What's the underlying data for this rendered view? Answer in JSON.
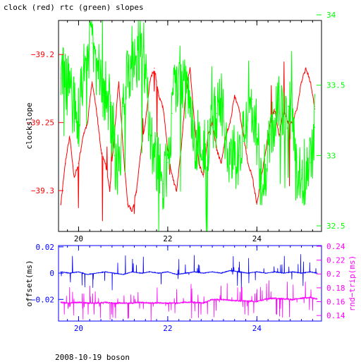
{
  "page": {
    "title": "clock (red) rtc (green) slopes",
    "footer": "2008-10-19 boson"
  },
  "colors": {
    "red": "#ff0000",
    "green": "#00ff00",
    "blue": "#0000ff",
    "magenta": "#ff00ff",
    "black": "#000000"
  },
  "chart_data": [
    {
      "type": "line",
      "title": "clock (red) rtc (green) slopes",
      "xlabel": "",
      "ylabel": "clockslope",
      "xlim": [
        19.55,
        25.45
      ],
      "ylim": [
        -39.33,
        -39.175
      ],
      "x_ticks": [
        20,
        22,
        24
      ],
      "x_tick_labels": [
        "20",
        "22",
        "24"
      ],
      "y_ticks": [
        -39.2,
        -39.25,
        -39.3
      ],
      "y_tick_labels": [
        "−39.2",
        "−39.25",
        "−39.3"
      ],
      "y2lim": [
        32.46,
        33.96
      ],
      "y2_ticks": [
        32.5,
        33,
        33.5,
        34
      ],
      "y2_tick_labels": [
        "32.5",
        "33",
        "33.5",
        "34"
      ],
      "series": [
        {
          "color": "red",
          "axis": "left",
          "x": [
            19.6,
            19.7,
            19.8,
            19.9,
            20.0,
            20.1,
            20.2,
            20.3,
            20.4,
            20.5,
            20.6,
            20.7,
            20.8,
            20.9,
            21.0,
            21.1,
            21.2,
            21.3,
            21.4,
            21.5,
            21.6,
            21.7,
            21.8,
            21.9,
            22.0,
            22.1,
            22.2,
            22.3,
            22.4,
            22.5,
            22.6,
            22.7,
            22.8,
            22.9,
            23.0,
            23.1,
            23.2,
            23.3,
            23.4,
            23.5,
            23.6,
            23.7,
            23.8,
            23.9,
            24.0,
            24.1,
            24.2,
            24.3,
            24.4,
            24.5,
            24.6,
            24.7,
            24.8,
            24.9,
            25.0,
            25.1,
            25.2,
            25.3
          ],
          "y": [
            -39.31,
            -39.28,
            -39.26,
            -39.29,
            -39.28,
            -39.26,
            -39.25,
            -39.22,
            -39.24,
            -39.27,
            -39.28,
            -39.3,
            -39.26,
            -39.22,
            -39.27,
            -39.31,
            -39.315,
            -39.3,
            -39.27,
            -39.25,
            -39.22,
            -39.21,
            -39.23,
            -39.24,
            -39.27,
            -39.29,
            -39.3,
            -39.27,
            -39.23,
            -39.21,
            -39.25,
            -39.28,
            -39.29,
            -39.26,
            -39.25,
            -39.27,
            -39.28,
            -39.26,
            -39.25,
            -39.23,
            -39.24,
            -39.26,
            -39.28,
            -39.29,
            -39.31,
            -39.29,
            -39.27,
            -39.25,
            -39.24,
            -39.26,
            -39.24,
            -39.25,
            -39.25,
            -39.24,
            -39.22,
            -39.21,
            -39.22,
            -39.24
          ]
        },
        {
          "color": "green",
          "axis": "right",
          "x": [
            19.6,
            19.7,
            19.8,
            19.9,
            20.0,
            20.1,
            20.2,
            20.3,
            20.4,
            20.5,
            20.6,
            20.7,
            20.8,
            20.9,
            21.0,
            21.1,
            21.2,
            21.3,
            21.4,
            21.5,
            21.6,
            21.7,
            21.8,
            21.9,
            22.0,
            22.1,
            22.2,
            22.3,
            22.4,
            22.5,
            22.6,
            22.7,
            22.8,
            22.9,
            23.0,
            23.1,
            23.2,
            23.3,
            23.4,
            23.5,
            23.6,
            23.7,
            23.8,
            23.9,
            24.0,
            24.1,
            24.2,
            24.3,
            24.4,
            24.5,
            24.6,
            24.7,
            24.8,
            24.9,
            25.0,
            25.1,
            25.2,
            25.3
          ],
          "y": [
            33.55,
            33.55,
            33.45,
            33.35,
            33.25,
            33.55,
            33.75,
            33.8,
            33.65,
            33.55,
            33.45,
            33.35,
            33.0,
            32.9,
            33.35,
            33.6,
            33.7,
            33.7,
            33.8,
            33.55,
            33.15,
            33.05,
            32.9,
            32.8,
            32.95,
            33.3,
            33.55,
            33.6,
            33.45,
            33.3,
            33.15,
            33.1,
            33.05,
            33.05,
            33.2,
            33.3,
            33.4,
            33.15,
            32.95,
            32.95,
            33.0,
            33.1,
            33.25,
            33.4,
            33.15,
            32.8,
            32.9,
            33.15,
            33.3,
            33.4,
            33.3,
            33.35,
            33.3,
            32.85,
            32.9,
            32.85,
            32.95,
            33.2
          ]
        }
      ]
    },
    {
      "type": "line",
      "xlabel": "",
      "ylabel": "offset(ms)",
      "xlim": [
        19.55,
        25.45
      ],
      "ylim": [
        -0.0365,
        0.021
      ],
      "x_ticks": [
        20,
        22,
        24
      ],
      "x_tick_labels": [
        "20",
        "22",
        "24"
      ],
      "y_ticks": [
        0.02,
        0,
        -0.02
      ],
      "y_tick_labels": [
        "0.02",
        "0",
        "−0.02"
      ],
      "y2label": "rnd−trip(ms)",
      "y2lim": [
        0.132,
        0.241
      ],
      "y2_ticks": [
        0.14,
        0.16,
        0.18,
        0.2,
        0.22,
        0.24
      ],
      "y2_tick_labels": [
        "0.14",
        "0.16",
        "0.18",
        "0.2",
        "0.22",
        "0.24"
      ],
      "series": [
        {
          "color": "blue",
          "axis": "left",
          "x": [
            19.6,
            19.8,
            20.0,
            20.2,
            20.4,
            20.6,
            20.8,
            21.0,
            21.2,
            21.4,
            21.6,
            21.8,
            22.0,
            22.2,
            22.4,
            22.6,
            22.8,
            23.0,
            23.2,
            23.4,
            23.6,
            23.8,
            24.0,
            24.2,
            24.4,
            24.6,
            24.8,
            25.0,
            25.2,
            25.35
          ],
          "y": [
            0.001,
            0.0,
            0.001,
            -0.001,
            0.0,
            0.001,
            0.0,
            -0.001,
            0.001,
            0.0,
            0.001,
            0.0,
            0.001,
            -0.001,
            0.0,
            0.001,
            0.0,
            0.001,
            0.0,
            0.002,
            0.001,
            0.0,
            0.001,
            0.0,
            0.001,
            0.0,
            0.001,
            0.0,
            0.001,
            0.0
          ]
        },
        {
          "color": "magenta",
          "axis": "right",
          "x": [
            19.6,
            19.8,
            20.0,
            20.2,
            20.4,
            20.6,
            20.8,
            21.0,
            21.2,
            21.4,
            21.6,
            21.8,
            22.0,
            22.2,
            22.4,
            22.6,
            22.8,
            23.0,
            23.2,
            23.4,
            23.6,
            23.8,
            24.0,
            24.2,
            24.4,
            24.6,
            24.8,
            25.0,
            25.2,
            25.35
          ],
          "y": [
            0.159,
            0.158,
            0.159,
            0.158,
            0.158,
            0.159,
            0.158,
            0.158,
            0.158,
            0.159,
            0.158,
            0.158,
            0.158,
            0.158,
            0.159,
            0.159,
            0.158,
            0.163,
            0.163,
            0.162,
            0.161,
            0.161,
            0.16,
            0.164,
            0.165,
            0.164,
            0.163,
            0.165,
            0.166,
            0.164
          ]
        }
      ]
    }
  ]
}
